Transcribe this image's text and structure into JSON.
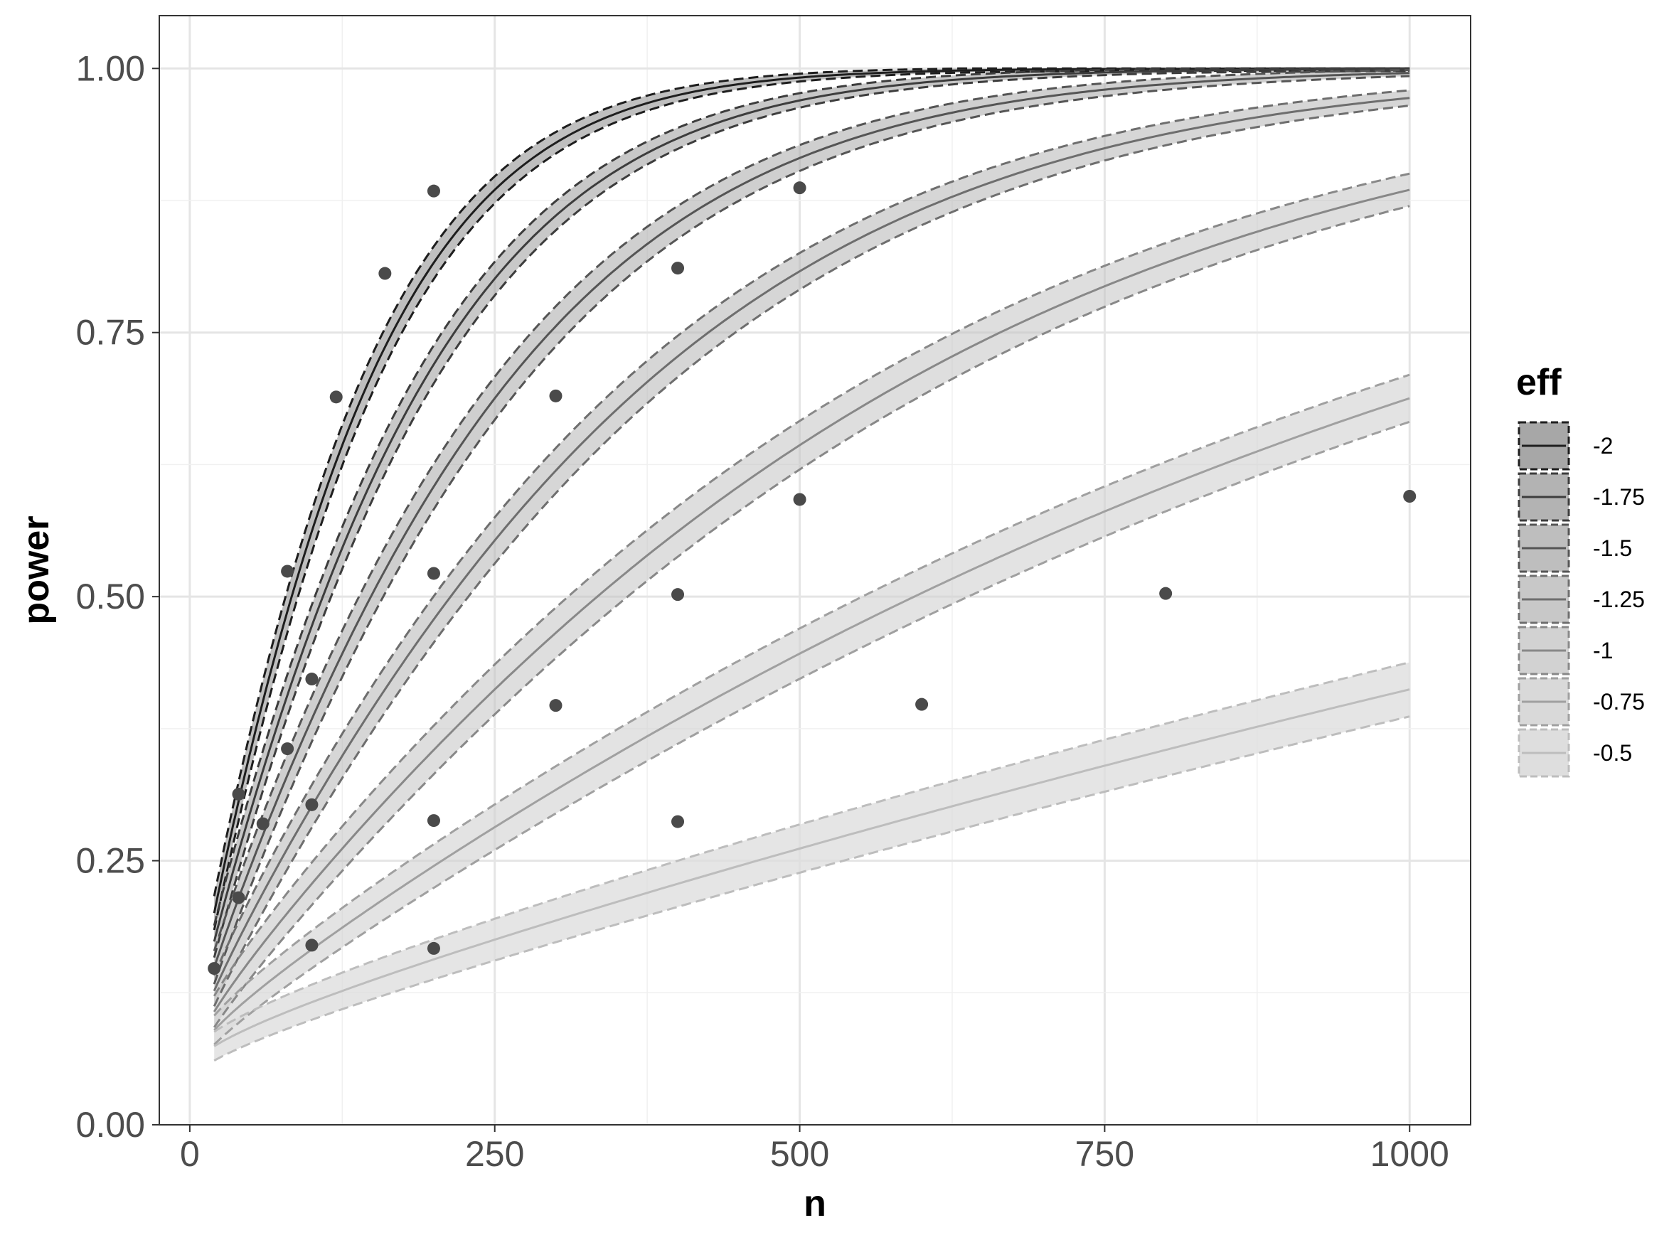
{
  "chart_data": {
    "type": "line",
    "xlabel": "n",
    "ylabel": "power",
    "xlim": [
      -25,
      1050
    ],
    "ylim": [
      0,
      1.05
    ],
    "x_ticks": [
      0,
      250,
      500,
      750,
      1000
    ],
    "x_tick_labels": [
      "0",
      "250",
      "500",
      "750",
      "1000"
    ],
    "y_ticks": [
      0,
      0.25,
      0.5,
      0.75,
      1.0
    ],
    "y_tick_labels": [
      "0.00",
      "0.25",
      "0.50",
      "0.75",
      "1.00"
    ],
    "grid": true,
    "legend": {
      "title": "eff",
      "position": "right",
      "entries": [
        "-2",
        "-1.75",
        "-1.5",
        "-1.25",
        "-1",
        "-0.75",
        "-0.5"
      ]
    },
    "curve_n_range": [
      20,
      1000
    ],
    "series": [
      {
        "name": "-2",
        "eff": -2,
        "line_color": "#1e1e1e",
        "band_color": "#8a8a8a",
        "band_opacity": 0.55,
        "band_halfwidth": 0.02
      },
      {
        "name": "-1.75",
        "eff": -1.75,
        "line_color": "#3d3d3d",
        "band_color": "#9a9a9a",
        "band_opacity": 0.55,
        "band_halfwidth": 0.02
      },
      {
        "name": "-1.5",
        "eff": -1.5,
        "line_color": "#555555",
        "band_color": "#a8a8a8",
        "band_opacity": 0.55,
        "band_halfwidth": 0.022
      },
      {
        "name": "-1.25",
        "eff": -1.25,
        "line_color": "#6e6e6e",
        "band_color": "#b5b5b5",
        "band_opacity": 0.55,
        "band_halfwidth": 0.022
      },
      {
        "name": "-1",
        "eff": -1,
        "line_color": "#888888",
        "band_color": "#c3c3c3",
        "band_opacity": 0.55,
        "band_halfwidth": 0.024
      },
      {
        "name": "-0.75",
        "eff": -0.75,
        "line_color": "#a0a0a0",
        "band_color": "#d0d0d0",
        "band_opacity": 0.6,
        "band_halfwidth": 0.024
      },
      {
        "name": "-0.5",
        "eff": -0.5,
        "line_color": "#bdbdbd",
        "band_color": "#dcdcdc",
        "band_opacity": 0.75,
        "band_halfwidth": 0.026
      }
    ],
    "points": [
      {
        "x": 20,
        "y": 0.148
      },
      {
        "x": 40,
        "y": 0.313
      },
      {
        "x": 40,
        "y": 0.215
      },
      {
        "x": 60,
        "y": 0.285
      },
      {
        "x": 80,
        "y": 0.524
      },
      {
        "x": 80,
        "y": 0.356
      },
      {
        "x": 100,
        "y": 0.422
      },
      {
        "x": 100,
        "y": 0.303
      },
      {
        "x": 100,
        "y": 0.17
      },
      {
        "x": 120,
        "y": 0.689
      },
      {
        "x": 160,
        "y": 0.806
      },
      {
        "x": 200,
        "y": 0.884
      },
      {
        "x": 200,
        "y": 0.522
      },
      {
        "x": 200,
        "y": 0.288
      },
      {
        "x": 200,
        "y": 0.167
      },
      {
        "x": 300,
        "y": 0.69
      },
      {
        "x": 300,
        "y": 0.397
      },
      {
        "x": 400,
        "y": 0.811
      },
      {
        "x": 400,
        "y": 0.502
      },
      {
        "x": 400,
        "y": 0.287
      },
      {
        "x": 500,
        "y": 0.887
      },
      {
        "x": 500,
        "y": 0.592
      },
      {
        "x": 600,
        "y": 0.398
      },
      {
        "x": 800,
        "y": 0.503
      },
      {
        "x": 1000,
        "y": 0.595
      }
    ]
  }
}
